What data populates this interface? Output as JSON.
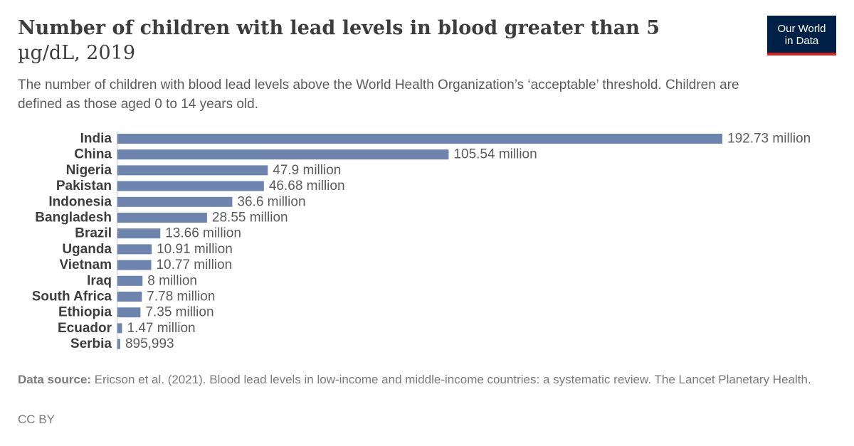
{
  "header": {
    "title_main": "Number of children with lead levels in blood greater than 5",
    "title_rest": "µg/dL, 2019",
    "subtitle": "The number of children with blood lead levels above the World Health Organization’s ‘acceptable’ threshold. Children are defined as those aged 0 to 14 years old."
  },
  "logo": {
    "line1": "Our World",
    "line2": "in Data"
  },
  "colors": {
    "bar": "#6d84ae",
    "label": "#3d3d3d",
    "value": "#5b5b5b",
    "axis": "#cccccc"
  },
  "chart_data": {
    "type": "bar",
    "orientation": "horizontal",
    "categories": [
      "India",
      "China",
      "Nigeria",
      "Pakistan",
      "Indonesia",
      "Bangladesh",
      "Brazil",
      "Uganda",
      "Vietnam",
      "Iraq",
      "South Africa",
      "Ethiopia",
      "Ecuador",
      "Serbia"
    ],
    "values": [
      192730000,
      105540000,
      47900000,
      46680000,
      36600000,
      28550000,
      13660000,
      10910000,
      10770000,
      8000000,
      7780000,
      7350000,
      1470000,
      895993
    ],
    "value_labels": [
      "192.73 million",
      "105.54 million",
      "47.9 million",
      "46.68 million",
      "36.6 million",
      "28.55 million",
      "13.66 million",
      "10.91 million",
      "10.77 million",
      "8 million",
      "7.78 million",
      "7.35 million",
      "1.47 million",
      "895,993"
    ],
    "xlim": [
      0,
      192730000
    ],
    "grid": false,
    "legend": "none"
  },
  "footer": {
    "source_label": "Data source:",
    "source_text": " Ericson et al. (2021). Blood lead levels in low-income and middle-income countries: a systematic review. The Lancet Planetary Health.",
    "license": "CC BY"
  }
}
